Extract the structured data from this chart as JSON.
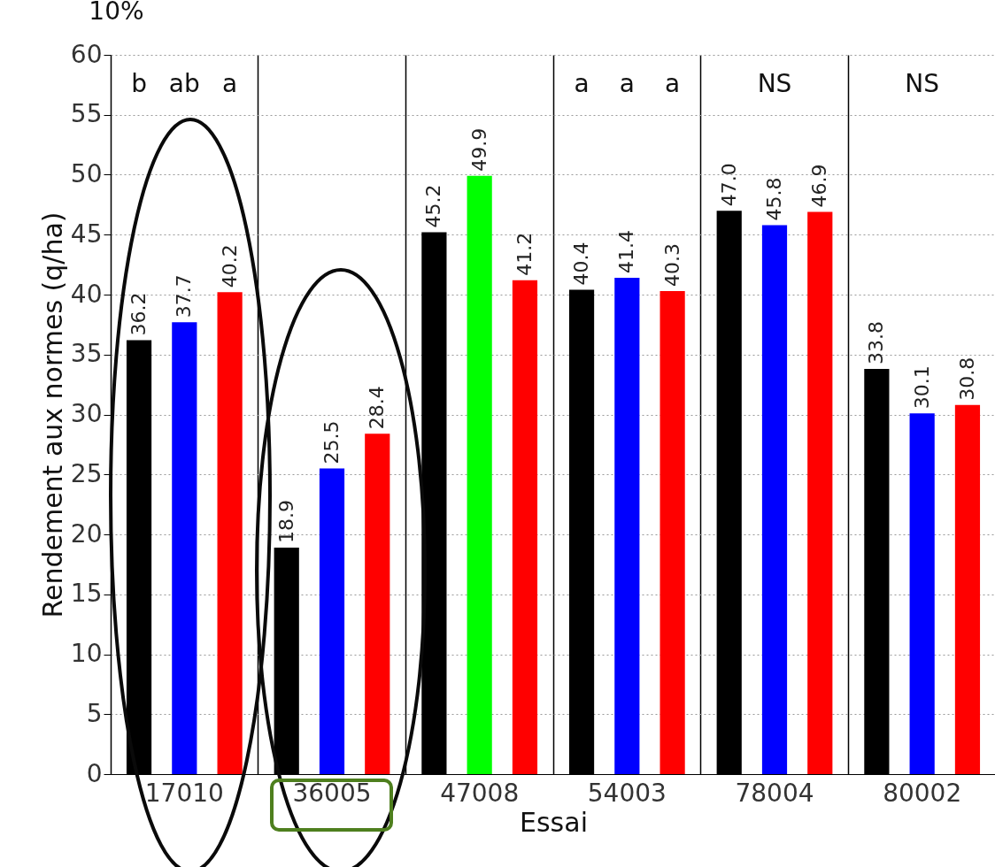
{
  "chart_data": {
    "type": "bar",
    "xlabel": "Essai",
    "ylabel": "Rendement aux normes (q/ha)",
    "categories": [
      "17010",
      "36005",
      "47008",
      "54003",
      "78004",
      "80002"
    ],
    "series": [
      {
        "color": "#000000",
        "values": [
          36.2,
          18.9,
          45.2,
          40.4,
          47.0,
          33.8
        ],
        "value_labels": [
          "36.2",
          "18.9",
          "45.2",
          "40.4",
          "47.0",
          "33.8"
        ]
      },
      {
        "colors": [
          "#0000ff",
          "#0000ff",
          "#00ff00",
          "#0000ff",
          "#0000ff",
          "#0000ff"
        ],
        "values": [
          37.7,
          25.5,
          49.9,
          41.4,
          45.8,
          30.1
        ],
        "value_labels": [
          "37.7",
          "25.5",
          "49.9",
          "41.4",
          "45.8",
          "30.1"
        ]
      },
      {
        "color": "#ff0000",
        "values": [
          40.2,
          28.4,
          41.2,
          40.3,
          46.9,
          30.8
        ],
        "value_labels": [
          "40.2",
          "28.4",
          "41.2",
          "40.3",
          "46.9",
          "30.8"
        ]
      }
    ],
    "ylim": [
      0,
      60
    ],
    "yticks": [
      0,
      5,
      10,
      15,
      20,
      25,
      30,
      35,
      40,
      45,
      50,
      55,
      60
    ],
    "grid": true,
    "annotations": [
      "10%",
      "b",
      "ab",
      "a",
      "a",
      "a",
      "a",
      "NS",
      "NS"
    ]
  }
}
